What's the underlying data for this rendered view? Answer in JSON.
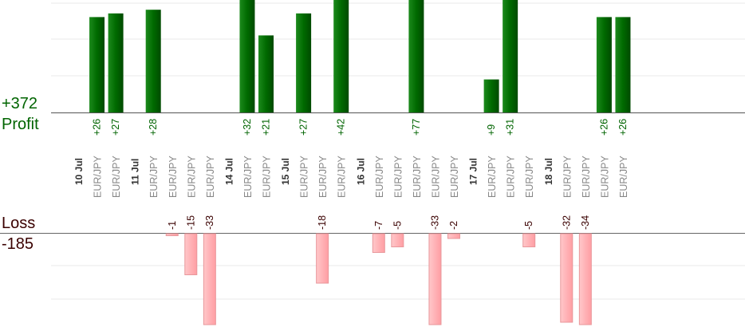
{
  "summary": {
    "profit_total": "+372",
    "profit_label": "Profit",
    "loss_label": "Loss",
    "loss_total": "-185"
  },
  "colors": {
    "profit_dark": "#005500",
    "profit_light": "#1c8a1c",
    "loss_fill": "#ffb6b9",
    "loss_stroke": "#e89a9e",
    "profit_text": "#006400",
    "loss_text": "#3a0000"
  },
  "chart_data": {
    "type": "bar",
    "title": "",
    "profit_ylim": [
      0,
      30
    ],
    "loss_ylim": [
      -30,
      0
    ],
    "columns": [
      {
        "label": "10 Jul",
        "kind": "date"
      },
      {
        "label": "EUR/JPY",
        "kind": "trade",
        "value": 26
      },
      {
        "label": "EUR/JPY",
        "kind": "trade",
        "value": 27
      },
      {
        "label": "11 Jul",
        "kind": "date"
      },
      {
        "label": "EUR/JPY",
        "kind": "trade",
        "value": 28
      },
      {
        "label": "EUR/JPY",
        "kind": "trade",
        "value": -1
      },
      {
        "label": "EUR/JPY",
        "kind": "trade",
        "value": -15
      },
      {
        "label": "EUR/JPY",
        "kind": "trade",
        "value": -33
      },
      {
        "label": "14 Jul",
        "kind": "date"
      },
      {
        "label": "EUR/JPY",
        "kind": "trade",
        "value": 32
      },
      {
        "label": "EUR/JPY",
        "kind": "trade",
        "value": 21
      },
      {
        "label": "15 Jul",
        "kind": "date"
      },
      {
        "label": "EUR/JPY",
        "kind": "trade",
        "value": 27
      },
      {
        "label": "EUR/JPY",
        "kind": "trade",
        "value": -18
      },
      {
        "label": "EUR/JPY",
        "kind": "trade",
        "value": 42
      },
      {
        "label": "16 Jul",
        "kind": "date"
      },
      {
        "label": "EUR/JPY",
        "kind": "trade",
        "value": -7
      },
      {
        "label": "EUR/JPY",
        "kind": "trade",
        "value": -5
      },
      {
        "label": "EUR/JPY",
        "kind": "trade",
        "value": 77
      },
      {
        "label": "EUR/JPY",
        "kind": "trade",
        "value": -33
      },
      {
        "label": "EUR/JPY",
        "kind": "trade",
        "value": -2
      },
      {
        "label": "17 Jul",
        "kind": "date"
      },
      {
        "label": "EUR/JPY",
        "kind": "trade",
        "value": 9
      },
      {
        "label": "EUR/JPY",
        "kind": "trade",
        "value": 31
      },
      {
        "label": "EUR/JPY",
        "kind": "trade",
        "value": -5
      },
      {
        "label": "18 Jul",
        "kind": "date"
      },
      {
        "label": "EUR/JPY",
        "kind": "trade",
        "value": -32
      },
      {
        "label": "EUR/JPY",
        "kind": "trade",
        "value": -34
      },
      {
        "label": "EUR/JPY",
        "kind": "trade",
        "value": 26
      },
      {
        "label": "EUR/JPY",
        "kind": "trade",
        "value": 26
      }
    ]
  }
}
